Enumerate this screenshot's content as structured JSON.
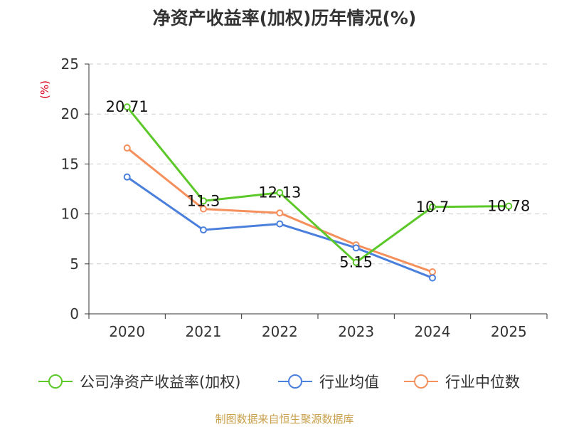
{
  "chart_data": {
    "type": "line",
    "title": "净资产收益率(加权)历年情况(%)",
    "ylabel": "(%)",
    "xlabel": "",
    "ylim": [
      0,
      25
    ],
    "yticks": [
      0,
      5,
      10,
      15,
      20,
      25
    ],
    "categories": [
      "2020",
      "2021",
      "2022",
      "2023",
      "2024",
      "2025"
    ],
    "grid": true,
    "legend_position": "bottom",
    "series": [
      {
        "name": "公司净资产收益率(加权)",
        "color": "#5cc82a",
        "values": [
          20.71,
          11.3,
          12.13,
          5.15,
          10.7,
          10.78
        ],
        "labels": [
          "20.71",
          "11.3",
          "12.13",
          "5.15",
          "10.7",
          "10.78"
        ]
      },
      {
        "name": "行业均值",
        "color": "#4a7fdc",
        "values": [
          13.7,
          8.4,
          9.0,
          6.6,
          3.6,
          null
        ]
      },
      {
        "name": "行业中位数",
        "color": "#f5905c",
        "values": [
          16.6,
          10.5,
          10.1,
          6.9,
          4.2,
          null
        ]
      }
    ]
  },
  "source": "制图数据来自恒生聚源数据库"
}
